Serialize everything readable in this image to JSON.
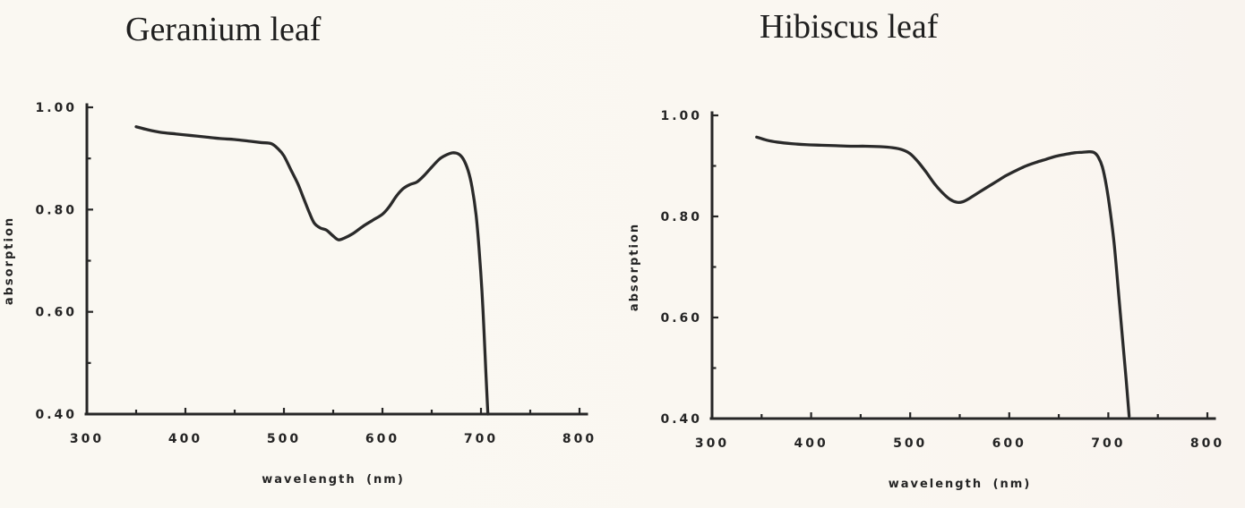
{
  "figure": {
    "background": "#faf8f2",
    "ink": "#262626",
    "left_title": "Geranium leaf",
    "right_title": "Hibiscus leaf"
  },
  "chart_data": [
    {
      "type": "line",
      "title": "Geranium leaf",
      "xlabel": "wavelength (nm)",
      "ylabel": "absorption",
      "xlim": [
        300,
        800
      ],
      "ylim": [
        0.4,
        1.0
      ],
      "grid": false,
      "legend": "none",
      "x_ticks": {
        "major": [
          {
            "value": 300,
            "label": "300"
          },
          {
            "value": 400,
            "label": "400"
          },
          {
            "value": 500,
            "label": "500"
          },
          {
            "value": 600,
            "label": "600"
          },
          {
            "value": 700,
            "label": "700"
          },
          {
            "value": 800,
            "label": "800"
          }
        ],
        "minor": [
          350,
          450,
          550,
          650,
          750
        ]
      },
      "y_ticks": {
        "major": [
          {
            "value": 1.0,
            "label": "1.00"
          },
          {
            "value": 0.8,
            "label": "0.80"
          },
          {
            "value": 0.6,
            "label": "0.60"
          },
          {
            "value": 0.4,
            "label": "0.40"
          }
        ],
        "minor": [
          0.9,
          0.7,
          0.5
        ]
      },
      "series": [
        {
          "name": "Geranium leaf absorption spectrum",
          "points": [
            [
              350,
              0.962
            ],
            [
              362,
              0.956
            ],
            [
              375,
              0.951
            ],
            [
              390,
              0.948
            ],
            [
              405,
              0.945
            ],
            [
              420,
              0.942
            ],
            [
              435,
              0.939
            ],
            [
              450,
              0.937
            ],
            [
              464,
              0.934
            ],
            [
              477,
              0.931
            ],
            [
              487,
              0.929
            ],
            [
              494,
              0.919
            ],
            [
              500,
              0.905
            ],
            [
              507,
              0.878
            ],
            [
              514,
              0.851
            ],
            [
              520,
              0.822
            ],
            [
              526,
              0.793
            ],
            [
              531,
              0.773
            ],
            [
              537,
              0.764
            ],
            [
              543,
              0.76
            ],
            [
              549,
              0.75
            ],
            [
              555,
              0.741
            ],
            [
              561,
              0.744
            ],
            [
              570,
              0.753
            ],
            [
              580,
              0.767
            ],
            [
              590,
              0.779
            ],
            [
              600,
              0.791
            ],
            [
              607,
              0.806
            ],
            [
              614,
              0.826
            ],
            [
              621,
              0.841
            ],
            [
              628,
              0.849
            ],
            [
              635,
              0.854
            ],
            [
              642,
              0.866
            ],
            [
              650,
              0.883
            ],
            [
              658,
              0.899
            ],
            [
              665,
              0.907
            ],
            [
              671,
              0.911
            ],
            [
              677,
              0.909
            ],
            [
              682,
              0.899
            ],
            [
              687,
              0.876
            ],
            [
              691,
              0.843
            ],
            [
              695,
              0.79
            ],
            [
              698,
              0.725
            ],
            [
              701,
              0.64
            ],
            [
              703,
              0.565
            ],
            [
              705,
              0.48
            ],
            [
              707,
              0.4
            ]
          ]
        }
      ]
    },
    {
      "type": "line",
      "title": "Hibiscus leaf",
      "xlabel": "wavelength (nm)",
      "ylabel": "absorption",
      "xlim": [
        300,
        800
      ],
      "ylim": [
        0.4,
        1.0
      ],
      "grid": false,
      "legend": "none",
      "x_ticks": {
        "major": [
          {
            "value": 300,
            "label": "300"
          },
          {
            "value": 400,
            "label": "400"
          },
          {
            "value": 500,
            "label": "500"
          },
          {
            "value": 600,
            "label": "600"
          },
          {
            "value": 700,
            "label": "700"
          },
          {
            "value": 800,
            "label": "800"
          }
        ],
        "minor": [
          350,
          450,
          550,
          650,
          750
        ]
      },
      "y_ticks": {
        "major": [
          {
            "value": 1.0,
            "label": "1.00"
          },
          {
            "value": 0.8,
            "label": "0.80"
          },
          {
            "value": 0.6,
            "label": "0.60"
          },
          {
            "value": 0.4,
            "label": "0.40"
          }
        ],
        "minor": [
          0.9,
          0.7,
          0.5
        ]
      },
      "series": [
        {
          "name": "Hibiscus leaf absorption spectrum",
          "points": [
            [
              345,
              0.957
            ],
            [
              355,
              0.951
            ],
            [
              366,
              0.947
            ],
            [
              380,
              0.944
            ],
            [
              395,
              0.942
            ],
            [
              410,
              0.941
            ],
            [
              425,
              0.94
            ],
            [
              440,
              0.939
            ],
            [
              455,
              0.939
            ],
            [
              470,
              0.938
            ],
            [
              482,
              0.936
            ],
            [
              492,
              0.932
            ],
            [
              500,
              0.924
            ],
            [
              508,
              0.908
            ],
            [
              516,
              0.888
            ],
            [
              524,
              0.866
            ],
            [
              532,
              0.848
            ],
            [
              540,
              0.834
            ],
            [
              547,
              0.828
            ],
            [
              553,
              0.829
            ],
            [
              560,
              0.836
            ],
            [
              568,
              0.846
            ],
            [
              577,
              0.857
            ],
            [
              587,
              0.869
            ],
            [
              597,
              0.881
            ],
            [
              607,
              0.891
            ],
            [
              617,
              0.9
            ],
            [
              627,
              0.907
            ],
            [
              637,
              0.913
            ],
            [
              647,
              0.919
            ],
            [
              657,
              0.923
            ],
            [
              666,
              0.926
            ],
            [
              674,
              0.927
            ],
            [
              681,
              0.928
            ],
            [
              686,
              0.926
            ],
            [
              690,
              0.917
            ],
            [
              694,
              0.898
            ],
            [
              698,
              0.861
            ],
            [
              702,
              0.809
            ],
            [
              706,
              0.744
            ],
            [
              710,
              0.656
            ],
            [
              714,
              0.566
            ],
            [
              718,
              0.477
            ],
            [
              721,
              0.405
            ]
          ]
        }
      ]
    }
  ]
}
